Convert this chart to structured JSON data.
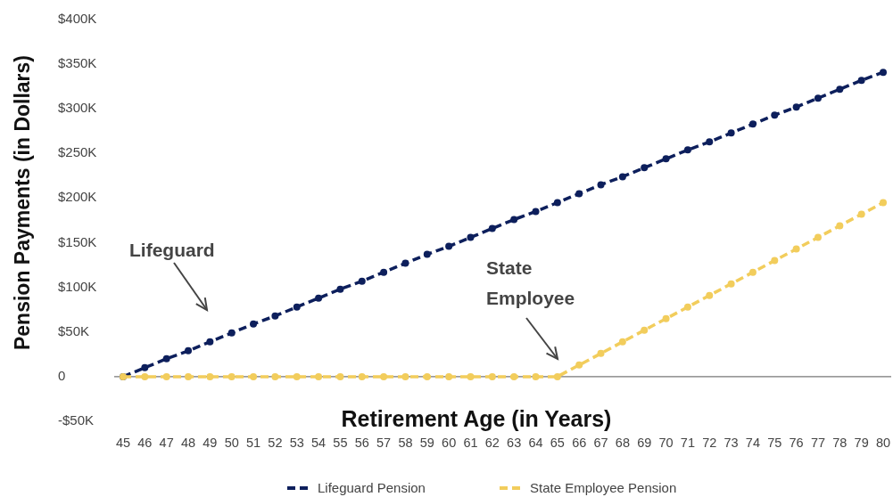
{
  "chart_data": {
    "type": "line",
    "xlabel": "Retirement Age (in Years)",
    "ylabel": "Pension Payments (in Dollars)",
    "x": [
      45,
      46,
      47,
      48,
      49,
      50,
      51,
      52,
      53,
      54,
      55,
      56,
      57,
      58,
      59,
      60,
      61,
      62,
      63,
      64,
      65,
      66,
      67,
      68,
      69,
      70,
      71,
      72,
      73,
      74,
      75,
      76,
      77,
      78,
      79,
      80
    ],
    "xlim": [
      45,
      80
    ],
    "xticks": [
      45,
      46,
      47,
      48,
      49,
      50,
      51,
      52,
      53,
      54,
      55,
      56,
      57,
      58,
      59,
      60,
      61,
      62,
      63,
      64,
      65,
      66,
      67,
      68,
      69,
      70,
      71,
      72,
      73,
      74,
      75,
      76,
      77,
      78,
      79,
      80
    ],
    "ylim": [
      -50000,
      400000
    ],
    "yticks": [
      {
        "value": -50000,
        "label": "-$50K"
      },
      {
        "value": 0,
        "label": "0"
      },
      {
        "value": 50000,
        "label": "$50K"
      },
      {
        "value": 100000,
        "label": "$100K"
      },
      {
        "value": 150000,
        "label": "$150K"
      },
      {
        "value": 200000,
        "label": "$200K"
      },
      {
        "value": 250000,
        "label": "$250K"
      },
      {
        "value": 300000,
        "label": "$300K"
      },
      {
        "value": 350000,
        "label": "$350K"
      },
      {
        "value": 400000,
        "label": "$400K"
      }
    ],
    "series": [
      {
        "name": "Lifeguard Pension",
        "color": "#0d1f5c",
        "values": [
          0,
          10000,
          20000,
          29000,
          39000,
          49000,
          59000,
          68000,
          78000,
          88000,
          98000,
          107000,
          117000,
          127000,
          137000,
          146000,
          156000,
          166000,
          176000,
          185000,
          195000,
          205000,
          215000,
          224000,
          234000,
          244000,
          254000,
          263000,
          273000,
          283000,
          293000,
          302000,
          312000,
          322000,
          332000,
          341000
        ]
      },
      {
        "name": "State Employee Pension",
        "color": "#f2cd5c",
        "values": [
          0,
          0,
          0,
          0,
          0,
          0,
          0,
          0,
          0,
          0,
          0,
          0,
          0,
          0,
          0,
          0,
          0,
          0,
          0,
          0,
          0,
          13000,
          26000,
          39000,
          52000,
          65000,
          78000,
          91000,
          104000,
          117000,
          130000,
          143000,
          156000,
          169000,
          182000,
          195000
        ]
      }
    ],
    "annotations": [
      "Lifeguard",
      "State\nEmployee"
    ],
    "ref_lines": [
      {
        "axis": "y",
        "value": 0,
        "color": "#777777"
      }
    ],
    "marker": "circle",
    "line_style": "dashed",
    "legend": "bottom"
  }
}
